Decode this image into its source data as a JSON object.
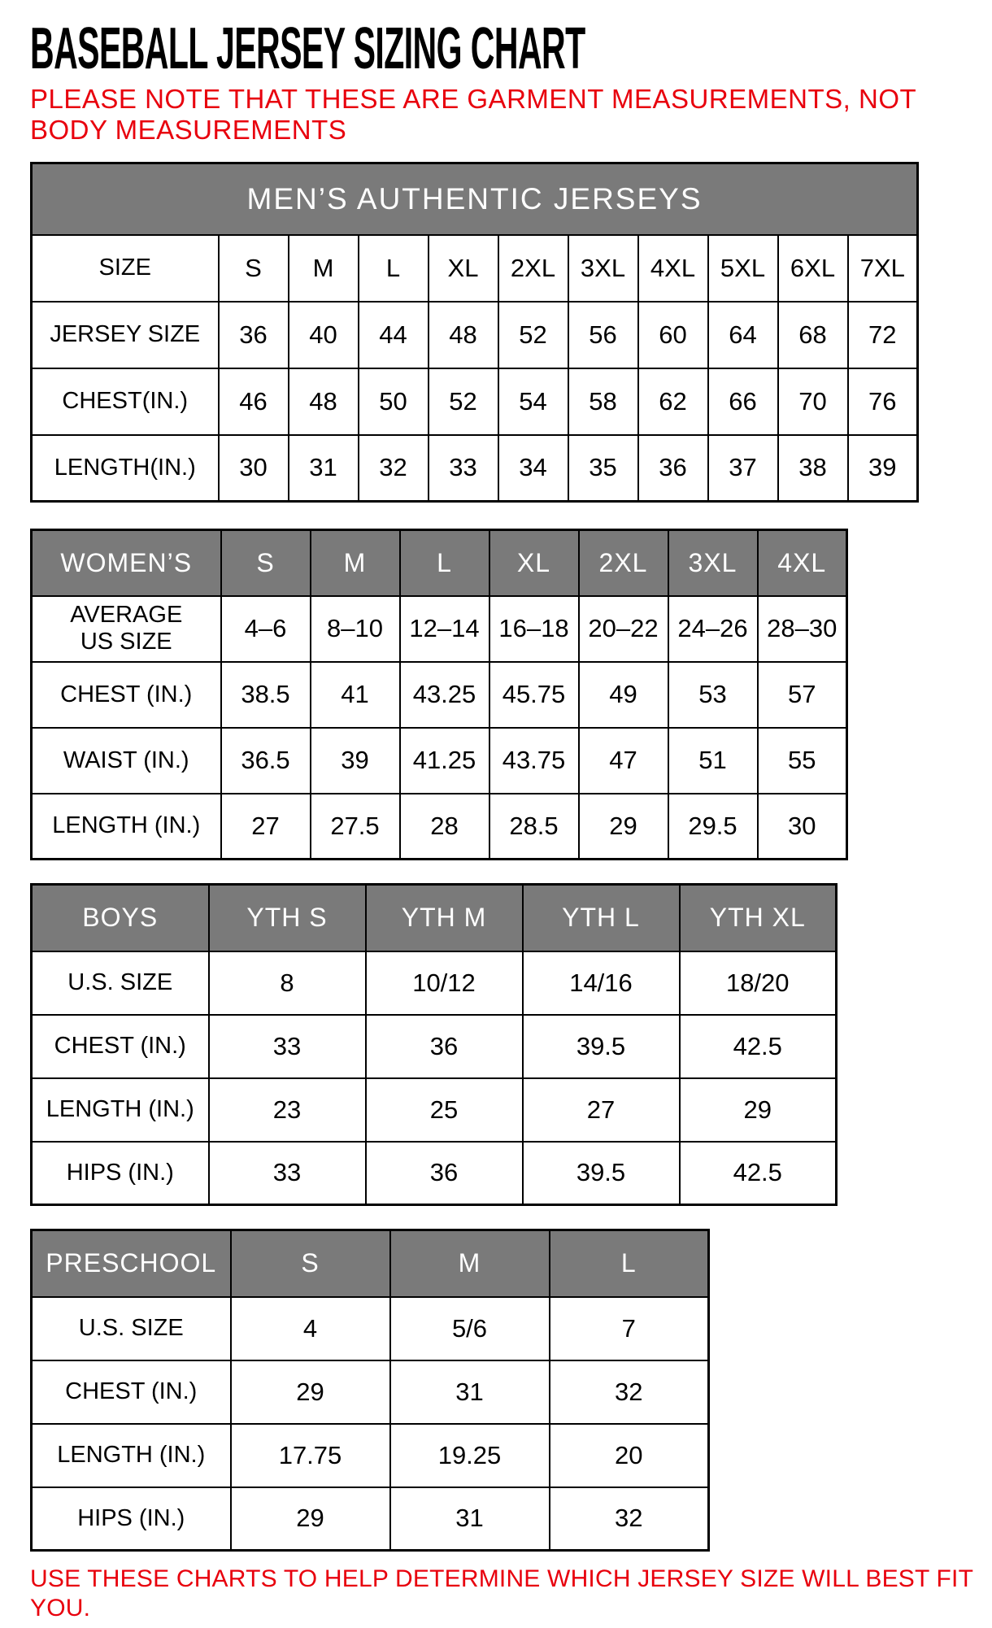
{
  "title": "BASEBALL JERSEY SIZING CHART",
  "note": "PLEASE NOTE THAT THESE ARE GARMENT MEASUREMENTS, NOT BODY MEASUREMENTS",
  "footer": "USE THESE CHARTS TO HELP DETERMINE WHICH JERSEY SIZE WILL BEST FIT YOU.",
  "colors": {
    "accent_red": "#e8000d",
    "header_gray": "#7a7a7a",
    "border_black": "#000000"
  },
  "tables": [
    {
      "name": "mens-authentic-jerseys",
      "merged_header": "MEN’S AUTHENTIC JERSEYS",
      "header_cells": null,
      "rows": [
        {
          "label": "SIZE",
          "values": [
            "S",
            "M",
            "L",
            "XL",
            "2XL",
            "3XL",
            "4XL",
            "5XL",
            "6XL",
            "7XL"
          ]
        },
        {
          "label": "JERSEY SIZE",
          "values": [
            "36",
            "40",
            "44",
            "48",
            "52",
            "56",
            "60",
            "64",
            "68",
            "72"
          ]
        },
        {
          "label": "CHEST(IN.)",
          "values": [
            "46",
            "48",
            "50",
            "52",
            "54",
            "58",
            "62",
            "66",
            "70",
            "76"
          ]
        },
        {
          "label": "LENGTH(IN.)",
          "values": [
            "30",
            "31",
            "32",
            "33",
            "34",
            "35",
            "36",
            "37",
            "38",
            "39"
          ]
        }
      ]
    },
    {
      "name": "womens",
      "merged_header": null,
      "header_cells": [
        "WOMEN’S",
        "S",
        "M",
        "L",
        "XL",
        "2XL",
        "3XL",
        "4XL"
      ],
      "rows": [
        {
          "label": "AVERAGE\nUS SIZE",
          "values": [
            "4–6",
            "8–10",
            "12–14",
            "16–18",
            "20–22",
            "24–26",
            "28–30"
          ]
        },
        {
          "label": "CHEST (IN.)",
          "values": [
            "38.5",
            "41",
            "43.25",
            "45.75",
            "49",
            "53",
            "57"
          ]
        },
        {
          "label": "WAIST (IN.)",
          "values": [
            "36.5",
            "39",
            "41.25",
            "43.75",
            "47",
            "51",
            "55"
          ]
        },
        {
          "label": "LENGTH (IN.)",
          "values": [
            "27",
            "27.5",
            "28",
            "28.5",
            "29",
            "29.5",
            "30"
          ]
        }
      ]
    },
    {
      "name": "boys",
      "merged_header": null,
      "header_cells": [
        "BOYS",
        "YTH S",
        "YTH M",
        "YTH L",
        "YTH XL"
      ],
      "rows": [
        {
          "label": "U.S. SIZE",
          "values": [
            "8",
            "10/12",
            "14/16",
            "18/20"
          ]
        },
        {
          "label": "CHEST (IN.)",
          "values": [
            "33",
            "36",
            "39.5",
            "42.5"
          ]
        },
        {
          "label": "LENGTH (IN.)",
          "values": [
            "23",
            "25",
            "27",
            "29"
          ]
        },
        {
          "label": "HIPS (IN.)",
          "values": [
            "33",
            "36",
            "39.5",
            "42.5"
          ]
        }
      ]
    },
    {
      "name": "preschool",
      "merged_header": null,
      "header_cells": [
        "PRESCHOOL",
        "S",
        "M",
        "L"
      ],
      "rows": [
        {
          "label": "U.S. SIZE",
          "values": [
            "4",
            "5/6",
            "7"
          ]
        },
        {
          "label": "CHEST (IN.)",
          "values": [
            "29",
            "31",
            "32"
          ]
        },
        {
          "label": "LENGTH (IN.)",
          "values": [
            "17.75",
            "19.25",
            "20"
          ]
        },
        {
          "label": "HIPS (IN.)",
          "values": [
            "29",
            "31",
            "32"
          ]
        }
      ]
    }
  ]
}
